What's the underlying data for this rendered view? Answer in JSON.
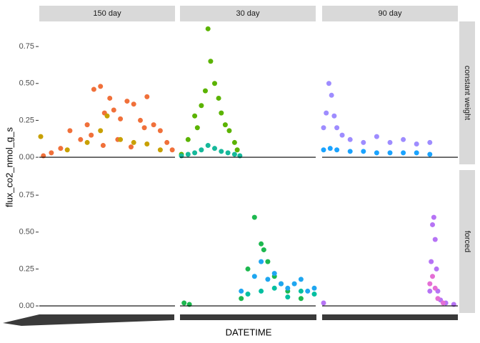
{
  "chart_data": {
    "type": "scatter",
    "x_label": "DATETIME",
    "y_label": "flux_co2_nmol_g_s",
    "columns": [
      "150 day",
      "30 day",
      "90 day"
    ],
    "rows": [
      "constant weight",
      "forced"
    ],
    "xlim": [
      0,
      100
    ],
    "ylim": [
      -0.048,
      0.92
    ],
    "yticks": [
      {
        "value": 0,
        "label": "0.00"
      },
      0.25,
      {
        "value": 0.5,
        "label": "0.50"
      },
      0.75
    ],
    "hline": 0,
    "panels": [
      [
        {
          "series": [
            {
              "color": "#F0703A",
              "x": [
                2,
                8,
                15,
                22,
                30,
                35,
                40,
                45,
                48,
                52,
                55,
                60,
                65,
                70,
                75,
                80,
                85,
                90,
                95,
                99,
                38,
                47,
                58,
                68,
                78
              ],
              "values": [
                0.01,
                0.03,
                0.06,
                0.18,
                0.12,
                0.22,
                0.46,
                0.48,
                0.3,
                0.4,
                0.32,
                0.26,
                0.38,
                0.36,
                0.25,
                0.41,
                0.22,
                0.18,
                0.1,
                0.05,
                0.15,
                0.08,
                0.12,
                0.07,
                0.2
              ]
            },
            {
              "color": "#C8A000",
              "x": [
                0,
                20,
                35,
                45,
                50,
                60,
                70,
                80,
                90
              ],
              "values": [
                0.14,
                0.05,
                0.1,
                0.18,
                0.28,
                0.12,
                0.1,
                0.09,
                0.05
              ]
            }
          ]
        },
        {
          "series": [
            {
              "color": "#5BB300",
              "x": [
                0,
                5,
                10,
                12,
                15,
                18,
                20,
                22,
                25,
                28,
                30,
                33,
                36,
                40,
                42
              ],
              "values": [
                0.02,
                0.12,
                0.28,
                0.2,
                0.35,
                0.45,
                0.87,
                0.65,
                0.5,
                0.4,
                0.3,
                0.22,
                0.18,
                0.1,
                0.05
              ]
            },
            {
              "color": "#16B89A",
              "x": [
                0,
                5,
                10,
                15,
                20,
                25,
                30,
                35,
                40,
                44
              ],
              "values": [
                0.01,
                0.02,
                0.03,
                0.05,
                0.08,
                0.06,
                0.04,
                0.03,
                0.02,
                0.01
              ]
            }
          ]
        },
        {
          "series": [
            {
              "color": "#9E8CFF",
              "x": [
                0,
                2,
                4,
                6,
                8,
                10,
                14,
                20,
                30,
                40,
                50,
                60,
                70,
                80
              ],
              "values": [
                0.2,
                0.3,
                0.5,
                0.42,
                0.28,
                0.2,
                0.15,
                0.12,
                0.1,
                0.14,
                0.1,
                0.12,
                0.09,
                0.1
              ]
            },
            {
              "color": "#1AA3FF",
              "x": [
                0,
                5,
                10,
                20,
                30,
                40,
                50,
                60,
                70,
                80
              ],
              "values": [
                0.05,
                0.06,
                0.05,
                0.04,
                0.04,
                0.03,
                0.03,
                0.03,
                0.03,
                0.02
              ]
            }
          ]
        }
      ],
      [
        {
          "series": []
        },
        {
          "series": [
            {
              "color": "#1DB84F",
              "x": [
                2,
                6,
                45,
                50,
                55,
                60,
                62,
                65,
                70,
                75,
                80,
                90
              ],
              "values": [
                0.02,
                0.01,
                0.05,
                0.25,
                0.6,
                0.42,
                0.38,
                0.3,
                0.2,
                0.15,
                0.1,
                0.05
              ]
            },
            {
              "color": "#1EA6F0",
              "x": [
                45,
                55,
                60,
                65,
                70,
                75,
                80,
                85,
                90,
                95,
                100
              ],
              "values": [
                0.1,
                0.2,
                0.3,
                0.18,
                0.22,
                0.15,
                0.12,
                0.15,
                0.18,
                0.1,
                0.12
              ]
            },
            {
              "color": "#00BFA0",
              "x": [
                50,
                60,
                70,
                80,
                90,
                100
              ],
              "values": [
                0.08,
                0.1,
                0.12,
                0.06,
                0.1,
                0.08
              ]
            }
          ]
        },
        {
          "series": [
            {
              "color": "#B673F5",
              "x": [
                0,
                80,
                81,
                82,
                83,
                84,
                85,
                86,
                88,
                92,
                98
              ],
              "values": [
                0.02,
                0.1,
                0.3,
                0.55,
                0.6,
                0.45,
                0.25,
                0.1,
                0.04,
                0.02,
                0.01
              ]
            },
            {
              "color": "#E46FD5",
              "x": [
                80,
                82,
                84,
                86,
                90
              ],
              "values": [
                0.15,
                0.2,
                0.12,
                0.05,
                0.02
              ]
            }
          ]
        }
      ]
    ]
  }
}
